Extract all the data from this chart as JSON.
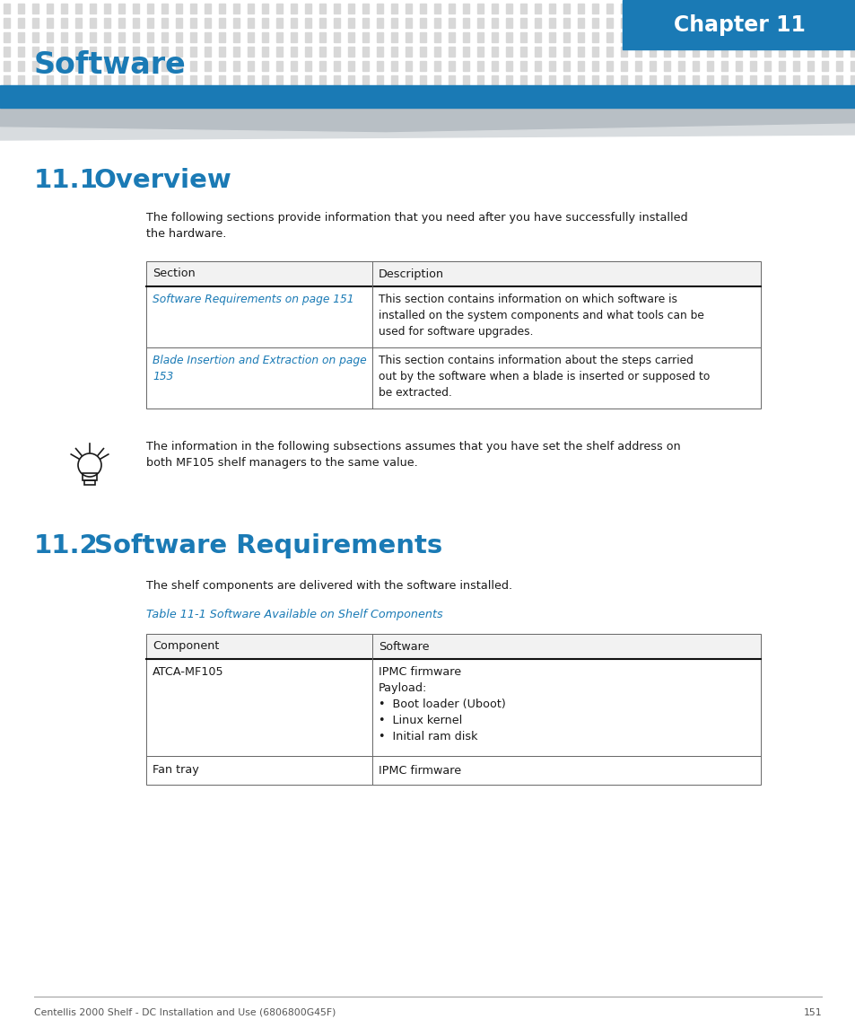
{
  "page_bg": "#ffffff",
  "header_blue": "#1a7ab5",
  "chapter_box_blue": "#1a7ab5",
  "title_blue": "#1a7ab5",
  "link_blue": "#1a7ab5",
  "dot_gray": "#d8d8d8",
  "separator_blue": "#1a7ab5",
  "chapter_text": "Chapter 11",
  "page_title": "Software",
  "section1_num": "11.1",
  "section1_title": "Overview",
  "section1_body": "The following sections provide information that you need after you have successfully installed\nthe hardware.",
  "table1_row1_left": "Software Requirements on page 151",
  "table1_row1_right": "This section contains information on which software is\ninstalled on the system components and what tools can be\nused for software upgrades.",
  "table1_row2_left": "Blade Insertion and Extraction on page\n153",
  "table1_row2_right": "This section contains information about the steps carried\nout by the software when a blade is inserted or supposed to\nbe extracted.",
  "tip_text": "The information in the following subsections assumes that you have set the shelf address on\nboth MF105 shelf managers to the same value.",
  "section2_num": "11.2",
  "section2_title": "Software Requirements",
  "section2_body": "The shelf components are delivered with the software installed.",
  "table2_caption": "Table 11-1 Software Available on Shelf Components",
  "table2_row1_left": "ATCA-MF105",
  "table2_row1_right": "IPMC firmware\nPayload:\n•  Boot loader (Uboot)\n•  Linux kernel\n•  Initial ram disk",
  "table2_row2_left": "Fan tray",
  "table2_row2_right": "IPMC firmware",
  "footer_text": "Centellis 2000 Shelf - DC Installation and Use (6806800G45F)",
  "footer_page": "151"
}
